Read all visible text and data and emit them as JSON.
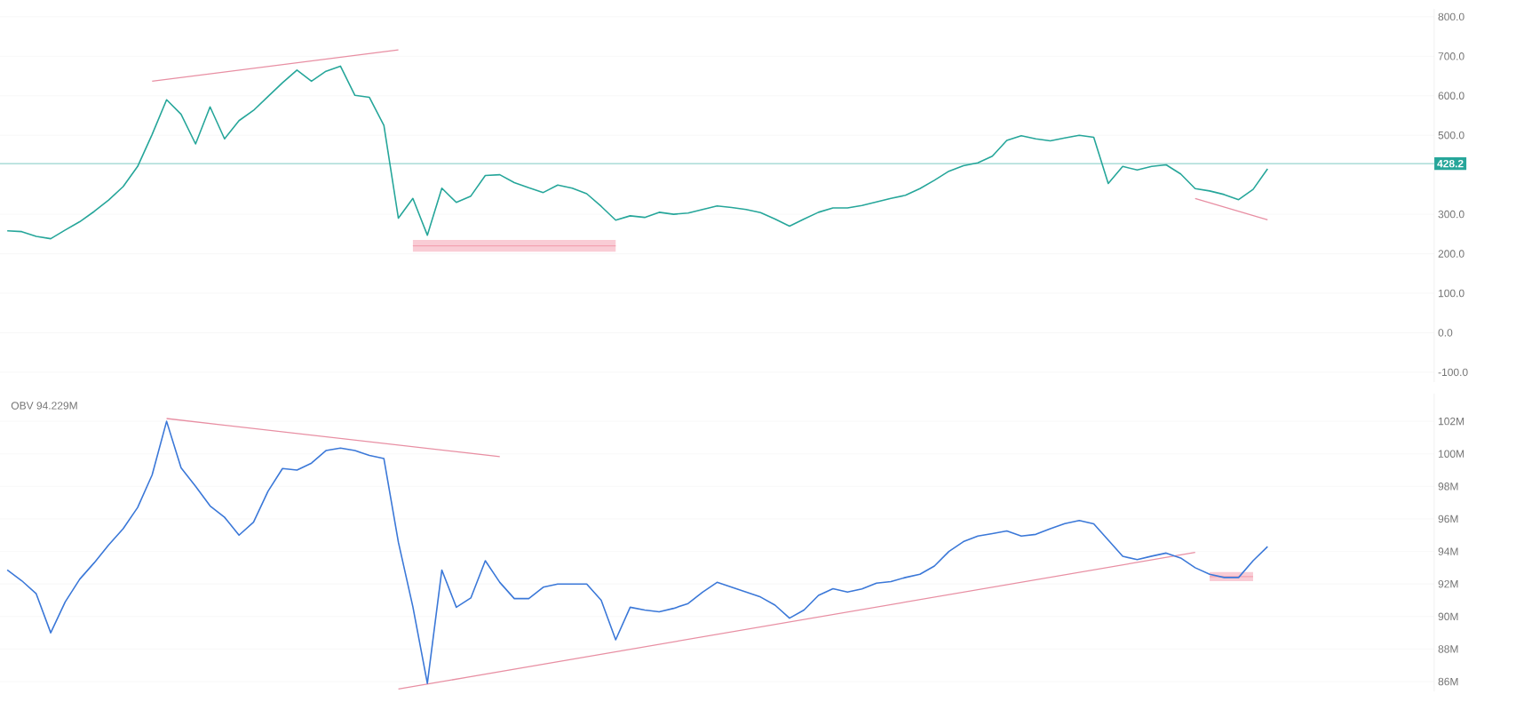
{
  "chart_data": [
    {
      "type": "line",
      "tick_labels": "y",
      "grid": "y",
      "categories": [
        null,
        null,
        null,
        null,
        null,
        null,
        null,
        null,
        null,
        null,
        null,
        null,
        null,
        null,
        null,
        null,
        null,
        null,
        null,
        null,
        null,
        null,
        null,
        null,
        null,
        null,
        null,
        null,
        null,
        null,
        null,
        null,
        null,
        null,
        null,
        null,
        null,
        null,
        null,
        null,
        null,
        null,
        null,
        null,
        null,
        null,
        null,
        null,
        null,
        null,
        null,
        null,
        null,
        null,
        null,
        null,
        null,
        null,
        null,
        null,
        null,
        null,
        null,
        null,
        null,
        null,
        null,
        null,
        null,
        null,
        null,
        null,
        null,
        null,
        null,
        null,
        null,
        null,
        null,
        null,
        null,
        null,
        null,
        null,
        null,
        null,
        null,
        null,
        null,
        null,
        null,
        null,
        null,
        null,
        null,
        null,
        null,
        null,
        null
      ],
      "ylim": [
        -125,
        820
      ],
      "yticks": [
        {
          "value": 800,
          "label": "800.0"
        },
        {
          "value": 700,
          "label": "700.0"
        },
        {
          "value": 600,
          "label": "600.0"
        },
        {
          "value": 500,
          "label": "500.0"
        },
        {
          "value": 300,
          "label": "300.0"
        },
        {
          "value": 200,
          "label": "200.0"
        },
        {
          "value": 100,
          "label": "100.0"
        },
        {
          "value": 0,
          "label": "0.0"
        },
        {
          "value": -100,
          "label": "-100.0"
        }
      ],
      "ref_lines": [
        {
          "axis": "y",
          "value": 428.2,
          "label": "428.2",
          "color": "#26a69a"
        }
      ],
      "series": [
        {
          "color": "#26a69a",
          "values": [
            258,
            256,
            244,
            238,
            260,
            281,
            307,
            336,
            370,
            421,
            502,
            590,
            553,
            478,
            572,
            491,
            537,
            563,
            598,
            633,
            665,
            637,
            662,
            675,
            601,
            596,
            525,
            290,
            340,
            247,
            366,
            330,
            346,
            398,
            400,
            380,
            367,
            355,
            374,
            366,
            352,
            320,
            285,
            296,
            292,
            305,
            300,
            303,
            312,
            321,
            317,
            312,
            304,
            288,
            270,
            288,
            305,
            316,
            316,
            322,
            331,
            340,
            348,
            365,
            386,
            409,
            423,
            430,
            447,
            487,
            499,
            491,
            486,
            493,
            500,
            495,
            378,
            421,
            412,
            421,
            425,
            402,
            365,
            359,
            350,
            337,
            363,
            415,
            null,
            null,
            null,
            null,
            null,
            null,
            null,
            null,
            null,
            null,
            null
          ]
        },
        {
          "color": "#e88fa3",
          "values": [
            null,
            null,
            null,
            null,
            null,
            null,
            null,
            null,
            null,
            null,
            637,
            null,
            null,
            null,
            null,
            null,
            null,
            null,
            null,
            null,
            null,
            null,
            null,
            null,
            null,
            null,
            null,
            716,
            null,
            null,
            null,
            null,
            null,
            null,
            null,
            null,
            null,
            null,
            null,
            null,
            null,
            null,
            null,
            null,
            null,
            null,
            null,
            null,
            null,
            null,
            null,
            null,
            null,
            null,
            null,
            null,
            null,
            null,
            null,
            null,
            null,
            null,
            null,
            null,
            null,
            null,
            null,
            null,
            null,
            null,
            null,
            null,
            null,
            null,
            null,
            null,
            null,
            null,
            null,
            null,
            null,
            null,
            null,
            null,
            null,
            null,
            null,
            null,
            null,
            null,
            null,
            null,
            null,
            null,
            null,
            null,
            null,
            null,
            null
          ]
        },
        {
          "color": "#e88fa3",
          "values": [
            null,
            null,
            null,
            null,
            null,
            null,
            null,
            null,
            null,
            null,
            null,
            null,
            null,
            null,
            null,
            null,
            null,
            null,
            null,
            null,
            null,
            null,
            null,
            null,
            null,
            null,
            null,
            null,
            null,
            null,
            null,
            null,
            null,
            null,
            null,
            null,
            null,
            null,
            null,
            null,
            null,
            null,
            null,
            null,
            null,
            null,
            null,
            null,
            null,
            null,
            null,
            null,
            null,
            null,
            null,
            null,
            null,
            null,
            null,
            null,
            null,
            null,
            null,
            null,
            null,
            null,
            null,
            null,
            null,
            null,
            null,
            null,
            null,
            null,
            null,
            null,
            null,
            null,
            null,
            null,
            null,
            null,
            340,
            null,
            null,
            null,
            null,
            286,
            null,
            null,
            null,
            null,
            null,
            null,
            null,
            null,
            null,
            null,
            null
          ]
        },
        {
          "color": "#f4a3b2",
          "values": [
            null,
            null,
            null,
            null,
            null,
            null,
            null,
            null,
            null,
            null,
            null,
            null,
            null,
            null,
            null,
            null,
            null,
            null,
            null,
            null,
            null,
            null,
            null,
            null,
            null,
            null,
            null,
            null,
            220,
            null,
            null,
            null,
            null,
            null,
            null,
            null,
            null,
            null,
            null,
            null,
            null,
            null,
            220,
            null,
            null,
            null,
            null,
            null,
            null,
            null,
            null,
            null,
            null,
            null,
            null,
            null,
            null,
            null,
            null,
            null,
            null,
            null,
            null,
            null,
            null,
            null,
            null,
            null,
            null,
            null,
            null,
            null,
            null,
            null,
            null,
            null,
            null,
            null,
            null,
            null,
            null,
            null,
            null,
            null,
            null,
            null,
            null,
            null,
            null,
            null,
            null,
            null,
            null,
            null,
            null,
            null,
            null,
            null,
            null
          ],
          "lower": [
            null,
            null,
            null,
            null,
            null,
            null,
            null,
            null,
            null,
            null,
            null,
            null,
            null,
            null,
            null,
            null,
            null,
            null,
            null,
            null,
            null,
            null,
            null,
            null,
            null,
            null,
            null,
            null,
            205,
            null,
            null,
            null,
            null,
            null,
            null,
            null,
            null,
            null,
            null,
            null,
            null,
            null,
            205,
            null,
            null,
            null,
            null,
            null,
            null,
            null,
            null,
            null,
            null,
            null,
            null,
            null,
            null,
            null,
            null,
            null,
            null,
            null,
            null,
            null,
            null,
            null,
            null,
            null,
            null,
            null,
            null,
            null,
            null,
            null,
            null,
            null,
            null,
            null,
            null,
            null,
            null,
            null,
            null,
            null,
            null,
            null,
            null,
            null,
            null,
            null,
            null,
            null,
            null,
            null,
            null,
            null,
            null,
            null,
            null
          ],
          "upper": [
            null,
            null,
            null,
            null,
            null,
            null,
            null,
            null,
            null,
            null,
            null,
            null,
            null,
            null,
            null,
            null,
            null,
            null,
            null,
            null,
            null,
            null,
            null,
            null,
            null,
            null,
            null,
            null,
            235,
            null,
            null,
            null,
            null,
            null,
            null,
            null,
            null,
            null,
            null,
            null,
            null,
            null,
            235,
            null,
            null,
            null,
            null,
            null,
            null,
            null,
            null,
            null,
            null,
            null,
            null,
            null,
            null,
            null,
            null,
            null,
            null,
            null,
            null,
            null,
            null,
            null,
            null,
            null,
            null,
            null,
            null,
            null,
            null,
            null,
            null,
            null,
            null,
            null,
            null,
            null,
            null,
            null,
            null,
            null,
            null,
            null,
            null,
            null,
            null,
            null,
            null,
            null,
            null,
            null,
            null,
            null,
            null,
            null,
            null
          ]
        }
      ]
    },
    {
      "type": "line",
      "tick_labels": "y",
      "grid": "y",
      "categories": [
        null,
        null,
        null,
        null,
        null,
        null,
        null,
        null,
        null,
        null,
        null,
        null,
        null,
        null,
        null,
        null,
        null,
        null,
        null,
        null,
        null,
        null,
        null,
        null,
        null,
        null,
        null,
        null,
        null,
        null,
        null,
        null,
        null,
        null,
        null,
        null,
        null,
        null,
        null,
        null,
        null,
        null,
        null,
        null,
        null,
        null,
        null,
        null,
        null,
        null,
        null,
        null,
        null,
        null,
        null,
        null,
        null,
        null,
        null,
        null,
        null,
        null,
        null,
        null,
        null,
        null,
        null,
        null,
        null,
        null,
        null,
        null,
        null,
        null,
        null,
        null,
        null,
        null,
        null,
        null,
        null,
        null,
        null,
        null,
        null,
        null,
        null,
        null,
        null,
        null,
        null,
        null,
        null,
        null,
        null,
        null,
        null,
        null,
        null
      ],
      "ylim": [
        85.4,
        103.7
      ],
      "yticks": [
        {
          "value": 102,
          "label": "102M"
        },
        {
          "value": 100,
          "label": "100M"
        },
        {
          "value": 98,
          "label": "98M"
        },
        {
          "value": 96,
          "label": "96M"
        },
        {
          "value": 94,
          "label": "94M"
        },
        {
          "value": 92,
          "label": "92M"
        },
        {
          "value": 90,
          "label": "90M"
        },
        {
          "value": 88,
          "label": "88M"
        },
        {
          "value": 86,
          "label": "86M"
        }
      ],
      "annotations": [
        "OBV  94.229M"
      ],
      "series": [
        {
          "color": "#3b78d8",
          "values": [
            92.86,
            92.2,
            91.4,
            89.0,
            90.9,
            92.29,
            93.3,
            94.4,
            95.4,
            96.7,
            98.7,
            102.0,
            99.14,
            98.0,
            96.8,
            96.1,
            95.0,
            95.8,
            97.7,
            99.1,
            99.0,
            99.43,
            100.2,
            100.35,
            100.2,
            99.9,
            99.71,
            94.57,
            90.6,
            85.89,
            92.86,
            90.57,
            91.14,
            93.43,
            92.1,
            91.1,
            91.1,
            91.8,
            92.0,
            92.0,
            92.0,
            91.0,
            88.57,
            90.57,
            90.4,
            90.29,
            90.5,
            90.8,
            91.5,
            92.1,
            91.8,
            91.5,
            91.2,
            90.7,
            89.9,
            90.4,
            91.3,
            91.71,
            91.5,
            91.7,
            92.05,
            92.15,
            92.4,
            92.6,
            93.1,
            94.0,
            94.6,
            94.95,
            95.1,
            95.26,
            94.95,
            95.05,
            95.4,
            95.71,
            95.9,
            95.7,
            94.7,
            93.7,
            93.5,
            93.71,
            93.9,
            93.6,
            93.0,
            92.6,
            92.4,
            92.4,
            93.43,
            94.3,
            null,
            null,
            null,
            null,
            null,
            null,
            null,
            null,
            null,
            null,
            null
          ]
        },
        {
          "color": "#e88fa3",
          "values": [
            null,
            null,
            null,
            null,
            null,
            null,
            null,
            null,
            null,
            null,
            null,
            102.17,
            null,
            null,
            null,
            null,
            null,
            null,
            null,
            null,
            null,
            null,
            null,
            null,
            null,
            null,
            null,
            null,
            null,
            null,
            null,
            null,
            null,
            null,
            99.83,
            null,
            null,
            null,
            null,
            null,
            null,
            null,
            null,
            null,
            null,
            null,
            null,
            null,
            null,
            null,
            null,
            null,
            null,
            null,
            null,
            null,
            null,
            null,
            null,
            null,
            null,
            null,
            null,
            null,
            null,
            null,
            null,
            null,
            null,
            null,
            null,
            null,
            null,
            null,
            null,
            null,
            null,
            null,
            null,
            null,
            null,
            null,
            null,
            null,
            null,
            null,
            null,
            null,
            null,
            null,
            null,
            null,
            null,
            null,
            null,
            null,
            null,
            null,
            null
          ]
        },
        {
          "color": "#e88fa3",
          "values": [
            null,
            null,
            null,
            null,
            null,
            null,
            null,
            null,
            null,
            null,
            null,
            null,
            null,
            null,
            null,
            null,
            null,
            null,
            null,
            null,
            null,
            null,
            null,
            null,
            null,
            null,
            null,
            85.54,
            null,
            null,
            null,
            null,
            null,
            null,
            null,
            null,
            null,
            null,
            null,
            null,
            null,
            null,
            null,
            null,
            null,
            null,
            null,
            null,
            null,
            null,
            null,
            null,
            null,
            null,
            null,
            null,
            null,
            null,
            null,
            null,
            null,
            null,
            null,
            null,
            null,
            null,
            null,
            null,
            null,
            null,
            null,
            null,
            null,
            null,
            null,
            null,
            null,
            null,
            null,
            null,
            null,
            null,
            93.94,
            null,
            null,
            null,
            null,
            null,
            null,
            null,
            null,
            null,
            null,
            null,
            null,
            null,
            null,
            null,
            null
          ]
        },
        {
          "color": "#f4a3b2",
          "values": [
            null,
            null,
            null,
            null,
            null,
            null,
            null,
            null,
            null,
            null,
            null,
            null,
            null,
            null,
            null,
            null,
            null,
            null,
            null,
            null,
            null,
            null,
            null,
            null,
            null,
            null,
            null,
            null,
            null,
            null,
            null,
            null,
            null,
            null,
            null,
            null,
            null,
            null,
            null,
            null,
            null,
            null,
            null,
            null,
            null,
            null,
            null,
            null,
            null,
            null,
            null,
            null,
            null,
            null,
            null,
            null,
            null,
            null,
            null,
            null,
            null,
            null,
            null,
            null,
            null,
            null,
            null,
            null,
            null,
            null,
            null,
            null,
            null,
            null,
            null,
            null,
            null,
            null,
            null,
            null,
            null,
            null,
            null,
            92.45,
            null,
            null,
            92.45,
            null,
            null,
            null,
            null,
            null,
            null,
            null,
            null,
            null,
            null,
            null,
            null
          ],
          "lower": [
            null,
            null,
            null,
            null,
            null,
            null,
            null,
            null,
            null,
            null,
            null,
            null,
            null,
            null,
            null,
            null,
            null,
            null,
            null,
            null,
            null,
            null,
            null,
            null,
            null,
            null,
            null,
            null,
            null,
            null,
            null,
            null,
            null,
            null,
            null,
            null,
            null,
            null,
            null,
            null,
            null,
            null,
            null,
            null,
            null,
            null,
            null,
            null,
            null,
            null,
            null,
            null,
            null,
            null,
            null,
            null,
            null,
            null,
            null,
            null,
            null,
            null,
            null,
            null,
            null,
            null,
            null,
            null,
            null,
            null,
            null,
            null,
            null,
            null,
            null,
            null,
            null,
            null,
            null,
            null,
            null,
            null,
            null,
            92.17,
            null,
            null,
            92.17,
            null,
            null,
            null,
            null,
            null,
            null,
            null,
            null,
            null,
            null,
            null,
            null
          ],
          "upper": [
            null,
            null,
            null,
            null,
            null,
            null,
            null,
            null,
            null,
            null,
            null,
            null,
            null,
            null,
            null,
            null,
            null,
            null,
            null,
            null,
            null,
            null,
            null,
            null,
            null,
            null,
            null,
            null,
            null,
            null,
            null,
            null,
            null,
            null,
            null,
            null,
            null,
            null,
            null,
            null,
            null,
            null,
            null,
            null,
            null,
            null,
            null,
            null,
            null,
            null,
            null,
            null,
            null,
            null,
            null,
            null,
            null,
            null,
            null,
            null,
            null,
            null,
            null,
            null,
            null,
            null,
            null,
            null,
            null,
            null,
            null,
            null,
            null,
            null,
            null,
            null,
            null,
            null,
            null,
            null,
            null,
            null,
            null,
            92.74,
            null,
            null,
            92.74,
            null,
            null,
            null,
            null,
            null,
            null,
            null,
            null,
            null,
            null,
            null,
            null
          ]
        }
      ]
    }
  ]
}
